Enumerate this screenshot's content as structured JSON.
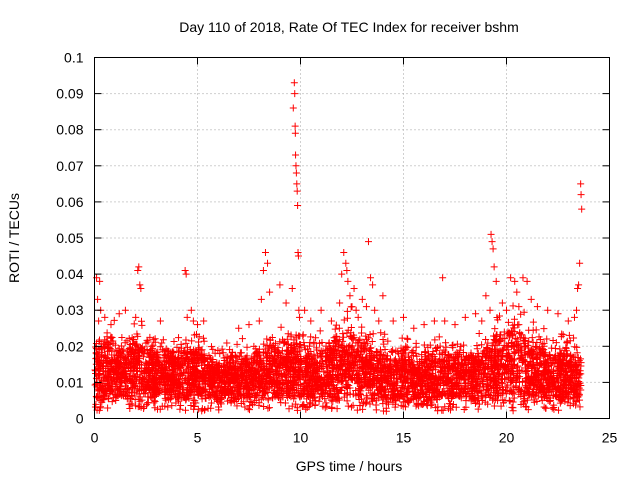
{
  "chart_data": {
    "type": "scatter",
    "title": "Day 110 of 2018, Rate Of TEC Index for receiver bshm",
    "xlabel": "GPS time / hours",
    "ylabel": "ROTI / TECUs",
    "xlim": [
      0,
      25
    ],
    "ylim": [
      0,
      0.1
    ],
    "xticks": [
      0,
      5,
      10,
      15,
      20,
      25
    ],
    "yticks": [
      0,
      0.01,
      0.02,
      0.03,
      0.04,
      0.05,
      0.06,
      0.07,
      0.08,
      0.09,
      0.1
    ],
    "xtick_labels": [
      "0",
      "5",
      "10",
      "15",
      "20",
      "25"
    ],
    "ytick_labels": [
      "0",
      "0.01",
      "0.02",
      "0.03",
      "0.04",
      "0.05",
      "0.06",
      "0.07",
      "0.08",
      "0.09",
      "0.1"
    ],
    "grid": true,
    "marker": "+",
    "color": "#ff0000",
    "series": [
      {
        "name": "ROTI",
        "x": [
          0.1,
          0.15,
          0.2,
          0.25,
          0.3,
          0.5,
          0.8,
          1.2,
          1.5,
          2.0,
          2.1,
          2.15,
          2.2,
          2.25,
          3.2,
          4.4,
          4.45,
          4.5,
          4.7,
          4.8,
          5.0,
          5.3,
          7.0,
          7.5,
          8.0,
          8.1,
          8.2,
          8.3,
          8.4,
          8.5,
          9.0,
          9.3,
          9.6,
          9.65,
          9.7,
          9.72,
          9.74,
          9.75,
          9.76,
          9.78,
          9.8,
          9.82,
          9.84,
          9.86,
          9.88,
          9.9,
          9.92,
          9.95,
          10.2,
          10.5,
          11.0,
          11.5,
          11.9,
          12.0,
          12.1,
          12.2,
          12.25,
          12.3,
          12.4,
          12.5,
          12.6,
          12.7,
          12.8,
          13.0,
          13.2,
          13.3,
          13.4,
          13.5,
          13.6,
          13.8,
          14.0,
          14.5,
          15.0,
          15.5,
          16.0,
          16.5,
          16.9,
          17.0,
          17.5,
          18.0,
          18.5,
          18.8,
          19.0,
          19.2,
          19.25,
          19.3,
          19.35,
          19.4,
          19.5,
          19.8,
          20.0,
          20.2,
          20.4,
          20.5,
          20.6,
          20.8,
          21.0,
          21.2,
          21.5,
          22.0,
          22.5,
          23.0,
          23.3,
          23.4,
          23.45,
          23.5,
          23.55,
          23.6,
          23.62,
          23.65
        ],
        "y": [
          0.039,
          0.033,
          0.027,
          0.038,
          0.03,
          0.028,
          0.026,
          0.029,
          0.03,
          0.028,
          0.041,
          0.042,
          0.037,
          0.036,
          0.027,
          0.041,
          0.04,
          0.028,
          0.03,
          0.027,
          0.026,
          0.027,
          0.025,
          0.026,
          0.027,
          0.033,
          0.041,
          0.046,
          0.043,
          0.035,
          0.037,
          0.032,
          0.036,
          0.086,
          0.093,
          0.09,
          0.081,
          0.079,
          0.073,
          0.07,
          0.068,
          0.065,
          0.063,
          0.059,
          0.046,
          0.045,
          0.03,
          0.028,
          0.03,
          0.027,
          0.03,
          0.027,
          0.032,
          0.04,
          0.046,
          0.043,
          0.041,
          0.038,
          0.034,
          0.031,
          0.036,
          0.03,
          0.028,
          0.033,
          0.031,
          0.049,
          0.039,
          0.037,
          0.03,
          0.027,
          0.034,
          0.027,
          0.028,
          0.025,
          0.026,
          0.027,
          0.039,
          0.027,
          0.026,
          0.028,
          0.029,
          0.027,
          0.034,
          0.03,
          0.051,
          0.049,
          0.047,
          0.042,
          0.038,
          0.032,
          0.03,
          0.039,
          0.038,
          0.035,
          0.031,
          0.039,
          0.038,
          0.033,
          0.031,
          0.03,
          0.029,
          0.027,
          0.028,
          0.03,
          0.036,
          0.037,
          0.043,
          0.065,
          0.062,
          0.058
        ],
        "baseline": {
          "x": [
            0,
            0.5,
            1,
            1.5,
            2,
            2.5,
            3,
            3.5,
            4,
            4.5,
            5,
            5.5,
            6,
            6.5,
            7,
            7.5,
            8,
            8.5,
            9,
            9.5,
            10,
            10.5,
            11,
            11.5,
            12,
            12.5,
            13,
            13.5,
            14,
            14.5,
            15,
            15.5,
            16,
            16.5,
            17,
            17.5,
            18,
            18.5,
            19,
            19.5,
            20,
            20.5,
            21,
            21.5,
            22,
            22.5,
            23,
            23.5
          ],
          "y": [
            0.012,
            0.014,
            0.013,
            0.012,
            0.014,
            0.013,
            0.012,
            0.013,
            0.011,
            0.012,
            0.013,
            0.011,
            0.01,
            0.011,
            0.012,
            0.011,
            0.012,
            0.013,
            0.012,
            0.014,
            0.013,
            0.012,
            0.012,
            0.013,
            0.014,
            0.015,
            0.013,
            0.012,
            0.012,
            0.011,
            0.012,
            0.011,
            0.011,
            0.012,
            0.012,
            0.011,
            0.012,
            0.012,
            0.013,
            0.014,
            0.015,
            0.016,
            0.014,
            0.013,
            0.012,
            0.012,
            0.012,
            0.011
          ],
          "spread": [
            0.01,
            0.012,
            0.011,
            0.01,
            0.012,
            0.011,
            0.01,
            0.01,
            0.009,
            0.01,
            0.011,
            0.009,
            0.008,
            0.009,
            0.01,
            0.009,
            0.01,
            0.011,
            0.01,
            0.012,
            0.011,
            0.01,
            0.01,
            0.011,
            0.012,
            0.013,
            0.011,
            0.01,
            0.01,
            0.009,
            0.01,
            0.009,
            0.009,
            0.01,
            0.01,
            0.009,
            0.01,
            0.01,
            0.011,
            0.012,
            0.013,
            0.014,
            0.012,
            0.011,
            0.01,
            0.01,
            0.01,
            0.009
          ]
        }
      }
    ]
  }
}
